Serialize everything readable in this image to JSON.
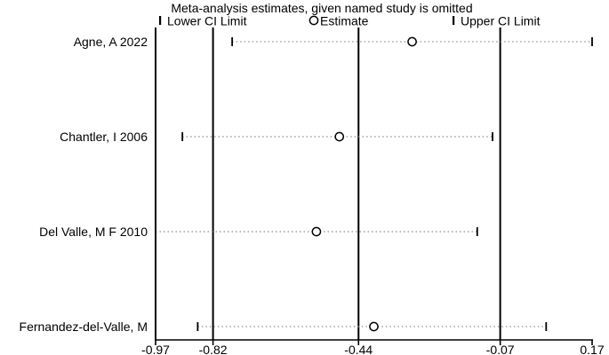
{
  "title": "Meta-analysis estimates, given named study is omitted",
  "legend": {
    "lower_label": "Lower CI Limit",
    "estimate_label": "Estimate",
    "upper_label": "Upper CI Limit"
  },
  "colors": {
    "line": "#000000",
    "dotted_ci": "#8f8f8f",
    "background": "#ffffff"
  },
  "chart_data": {
    "type": "scatter",
    "subtype": "leave-one-out meta-analysis (influence) plot",
    "title": "Meta-analysis estimates, given named study is omitted",
    "xlabel": "",
    "ylabel": "",
    "xlim": [
      -0.97,
      0.17
    ],
    "x_ticks": [
      "-0.97",
      "-0.82",
      "-0.44",
      "-0.07",
      "0.17"
    ],
    "grid": false,
    "legend_position": "top",
    "overall": {
      "lower_ci": -0.82,
      "estimate": -0.44,
      "upper_ci": -0.07
    },
    "studies": [
      {
        "label": "Agne, A 2022",
        "lower_ci": -0.77,
        "estimate": -0.3,
        "upper_ci": 0.17
      },
      {
        "label": "Chantler, I 2006",
        "lower_ci": -0.9,
        "estimate": -0.49,
        "upper_ci": -0.09
      },
      {
        "label": "Del Valle, M F 2010",
        "lower_ci": -0.97,
        "estimate": -0.55,
        "upper_ci": -0.13
      },
      {
        "label": "Fernandez-del-Valle, M",
        "lower_ci": -0.86,
        "estimate": -0.4,
        "upper_ci": 0.05
      }
    ]
  }
}
